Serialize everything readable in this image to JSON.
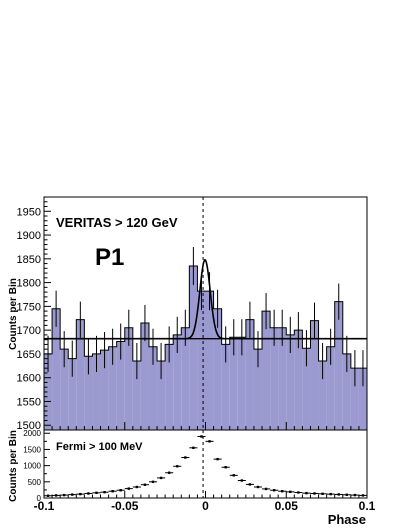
{
  "chart_data": [
    {
      "type": "bar",
      "panel": "upper",
      "label": "VERITAS > 120 GeV",
      "pulse_label": "P1",
      "ylabel": "Counts per Bin",
      "xlabel": "",
      "xlim": [
        -0.1,
        0.1
      ],
      "ylim": [
        1490,
        1980
      ],
      "y_ticks": [
        1500,
        1550,
        1600,
        1650,
        1700,
        1750,
        1800,
        1850,
        1900,
        1950
      ],
      "x_ticks": [
        -0.1,
        -0.05,
        0,
        0.05,
        0.1
      ],
      "x_tick_labels": [
        "-0.1",
        "-0.05",
        "0",
        "0.05",
        "0.1"
      ],
      "bin_width": 0.005,
      "bins_x": [
        -0.0975,
        -0.0925,
        -0.0875,
        -0.0825,
        -0.0775,
        -0.0725,
        -0.0675,
        -0.0625,
        -0.0575,
        -0.0525,
        -0.0475,
        -0.0425,
        -0.0375,
        -0.0325,
        -0.0275,
        -0.0225,
        -0.0175,
        -0.0125,
        -0.0075,
        -0.0025,
        0.0025,
        0.0075,
        0.0125,
        0.0175,
        0.0225,
        0.0275,
        0.0325,
        0.0375,
        0.0425,
        0.0475,
        0.0525,
        0.0575,
        0.0625,
        0.0675,
        0.0725,
        0.0775,
        0.0825,
        0.0875,
        0.0925,
        0.0975
      ],
      "bins_y": [
        1650,
        1745,
        1660,
        1640,
        1722,
        1645,
        1650,
        1658,
        1665,
        1676,
        1705,
        1635,
        1715,
        1665,
        1635,
        1670,
        1690,
        1705,
        1835,
        1782,
        1782,
        1745,
        1670,
        1685,
        1685,
        1722,
        1660,
        1740,
        1705,
        1705,
        1690,
        1700,
        1662,
        1720,
        1635,
        1665,
        1760,
        1650,
        1620,
        1620
      ],
      "bins_err": [
        38,
        38,
        38,
        38,
        38,
        38,
        38,
        38,
        38,
        38,
        38,
        38,
        38,
        38,
        38,
        38,
        38,
        38,
        40,
        40,
        40,
        40,
        38,
        38,
        38,
        38,
        38,
        38,
        38,
        38,
        38,
        38,
        38,
        38,
        38,
        38,
        38,
        38,
        38,
        38
      ],
      "baseline": 1682,
      "fit_peak": {
        "center": -0.0003,
        "height": 166,
        "sigma": 0.0032
      },
      "fill_color": "#9a9ad0",
      "line_color": "#000000",
      "dashed_x": -0.0015
    },
    {
      "type": "scatter",
      "panel": "lower",
      "label": "Fermi > 100 MeV",
      "ylabel": "Counts per Bin",
      "xlabel": "Phase",
      "xlim": [
        -0.1,
        0.1
      ],
      "ylim": [
        0,
        2100
      ],
      "y_ticks": [
        0,
        500,
        1000,
        1500,
        2000
      ],
      "x": [
        -0.0975,
        -0.0925,
        -0.0875,
        -0.0825,
        -0.0775,
        -0.0725,
        -0.0675,
        -0.0625,
        -0.0575,
        -0.0525,
        -0.0475,
        -0.0425,
        -0.0375,
        -0.0325,
        -0.0275,
        -0.0225,
        -0.0175,
        -0.0125,
        -0.0075,
        -0.0025,
        0.0025,
        0.0075,
        0.0125,
        0.0175,
        0.0225,
        0.0275,
        0.0325,
        0.0375,
        0.0425,
        0.0475,
        0.0525,
        0.0575,
        0.0625,
        0.0675,
        0.0725,
        0.0775,
        0.0825,
        0.0875,
        0.0925,
        0.0975
      ],
      "y": [
        70,
        80,
        90,
        105,
        120,
        140,
        160,
        180,
        210,
        240,
        290,
        340,
        410,
        500,
        620,
        780,
        980,
        1250,
        1550,
        1900,
        1750,
        1200,
        950,
        700,
        540,
        420,
        340,
        280,
        240,
        210,
        190,
        170,
        150,
        140,
        130,
        120,
        110,
        100,
        90,
        80
      ],
      "x_err": 0.005,
      "dashed_x": -0.0015
    }
  ]
}
